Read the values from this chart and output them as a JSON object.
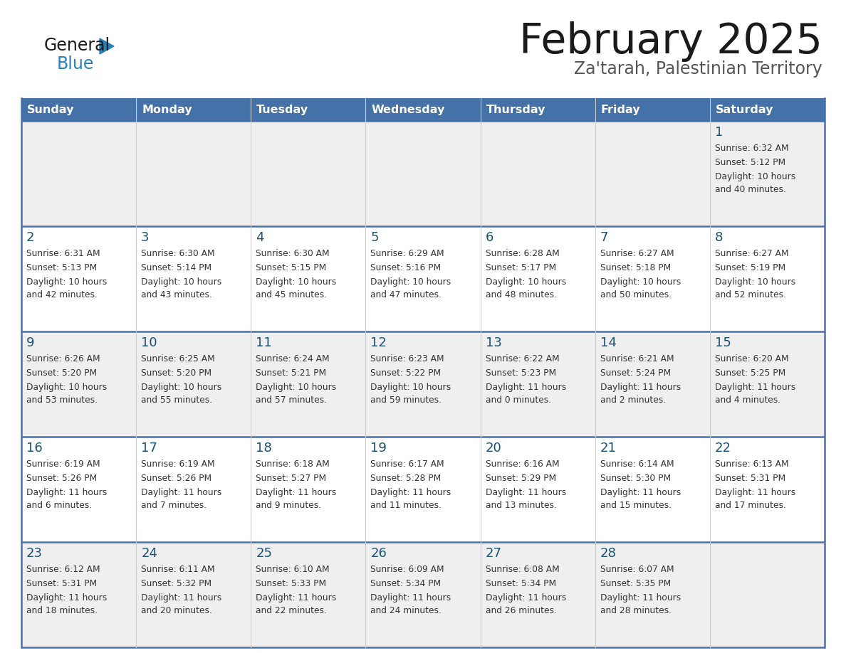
{
  "title": "February 2025",
  "subtitle": "Za'tarah, Palestinian Territory",
  "header_bg": "#4472a8",
  "header_text_color": "#ffffff",
  "cell_bg_row0": "#f0f0f0",
  "cell_bg_row1": "#ffffff",
  "cell_bg_row2": "#f0f0f0",
  "cell_bg_row3": "#ffffff",
  "cell_bg_row4": "#f0f0f0",
  "day_headers": [
    "Sunday",
    "Monday",
    "Tuesday",
    "Wednesday",
    "Thursday",
    "Friday",
    "Saturday"
  ],
  "title_color": "#1a1a1a",
  "subtitle_color": "#555555",
  "day_number_color": "#1a5276",
  "info_color": "#333333",
  "line_color": "#4472a8",
  "general_text_color": "#1a1a1a",
  "blue_color": "#2980b9",
  "logo_general": "General",
  "logo_blue": "Blue",
  "calendar_data": [
    [
      null,
      null,
      null,
      null,
      null,
      null,
      {
        "day": "1",
        "sunrise": "6:32 AM",
        "sunset": "5:12 PM",
        "daylight": "10 hours and 40 minutes."
      }
    ],
    [
      {
        "day": "2",
        "sunrise": "6:31 AM",
        "sunset": "5:13 PM",
        "daylight": "10 hours and 42 minutes."
      },
      {
        "day": "3",
        "sunrise": "6:30 AM",
        "sunset": "5:14 PM",
        "daylight": "10 hours and 43 minutes."
      },
      {
        "day": "4",
        "sunrise": "6:30 AM",
        "sunset": "5:15 PM",
        "daylight": "10 hours and 45 minutes."
      },
      {
        "day": "5",
        "sunrise": "6:29 AM",
        "sunset": "5:16 PM",
        "daylight": "10 hours and 47 minutes."
      },
      {
        "day": "6",
        "sunrise": "6:28 AM",
        "sunset": "5:17 PM",
        "daylight": "10 hours and 48 minutes."
      },
      {
        "day": "7",
        "sunrise": "6:27 AM",
        "sunset": "5:18 PM",
        "daylight": "10 hours and 50 minutes."
      },
      {
        "day": "8",
        "sunrise": "6:27 AM",
        "sunset": "5:19 PM",
        "daylight": "10 hours and 52 minutes."
      }
    ],
    [
      {
        "day": "9",
        "sunrise": "6:26 AM",
        "sunset": "5:20 PM",
        "daylight": "10 hours and 53 minutes."
      },
      {
        "day": "10",
        "sunrise": "6:25 AM",
        "sunset": "5:20 PM",
        "daylight": "10 hours and 55 minutes."
      },
      {
        "day": "11",
        "sunrise": "6:24 AM",
        "sunset": "5:21 PM",
        "daylight": "10 hours and 57 minutes."
      },
      {
        "day": "12",
        "sunrise": "6:23 AM",
        "sunset": "5:22 PM",
        "daylight": "10 hours and 59 minutes."
      },
      {
        "day": "13",
        "sunrise": "6:22 AM",
        "sunset": "5:23 PM",
        "daylight": "11 hours and 0 minutes."
      },
      {
        "day": "14",
        "sunrise": "6:21 AM",
        "sunset": "5:24 PM",
        "daylight": "11 hours and 2 minutes."
      },
      {
        "day": "15",
        "sunrise": "6:20 AM",
        "sunset": "5:25 PM",
        "daylight": "11 hours and 4 minutes."
      }
    ],
    [
      {
        "day": "16",
        "sunrise": "6:19 AM",
        "sunset": "5:26 PM",
        "daylight": "11 hours and 6 minutes."
      },
      {
        "day": "17",
        "sunrise": "6:19 AM",
        "sunset": "5:26 PM",
        "daylight": "11 hours and 7 minutes."
      },
      {
        "day": "18",
        "sunrise": "6:18 AM",
        "sunset": "5:27 PM",
        "daylight": "11 hours and 9 minutes."
      },
      {
        "day": "19",
        "sunrise": "6:17 AM",
        "sunset": "5:28 PM",
        "daylight": "11 hours and 11 minutes."
      },
      {
        "day": "20",
        "sunrise": "6:16 AM",
        "sunset": "5:29 PM",
        "daylight": "11 hours and 13 minutes."
      },
      {
        "day": "21",
        "sunrise": "6:14 AM",
        "sunset": "5:30 PM",
        "daylight": "11 hours and 15 minutes."
      },
      {
        "day": "22",
        "sunrise": "6:13 AM",
        "sunset": "5:31 PM",
        "daylight": "11 hours and 17 minutes."
      }
    ],
    [
      {
        "day": "23",
        "sunrise": "6:12 AM",
        "sunset": "5:31 PM",
        "daylight": "11 hours and 18 minutes."
      },
      {
        "day": "24",
        "sunrise": "6:11 AM",
        "sunset": "5:32 PM",
        "daylight": "11 hours and 20 minutes."
      },
      {
        "day": "25",
        "sunrise": "6:10 AM",
        "sunset": "5:33 PM",
        "daylight": "11 hours and 22 minutes."
      },
      {
        "day": "26",
        "sunrise": "6:09 AM",
        "sunset": "5:34 PM",
        "daylight": "11 hours and 24 minutes."
      },
      {
        "day": "27",
        "sunrise": "6:08 AM",
        "sunset": "5:34 PM",
        "daylight": "11 hours and 26 minutes."
      },
      {
        "day": "28",
        "sunrise": "6:07 AM",
        "sunset": "5:35 PM",
        "daylight": "11 hours and 28 minutes."
      },
      null
    ]
  ],
  "row_bg_colors": [
    "#efefef",
    "#ffffff",
    "#efefef",
    "#ffffff",
    "#efefef"
  ]
}
